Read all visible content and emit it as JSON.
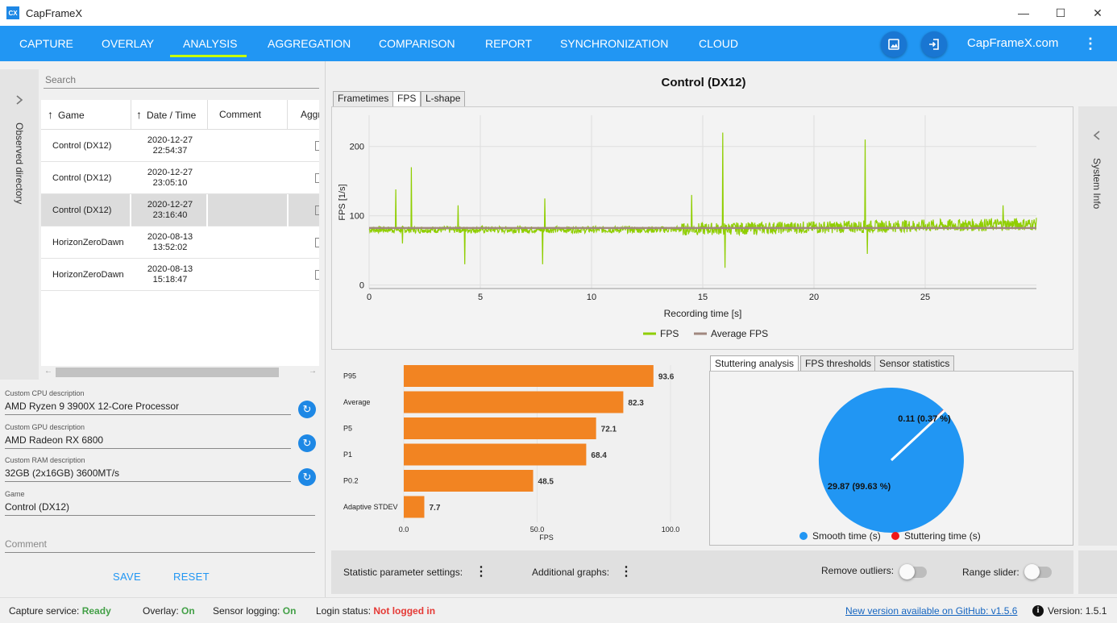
{
  "window": {
    "title": "CapFrameX",
    "logo_text": "CX"
  },
  "nav": {
    "tabs": [
      "CAPTURE",
      "OVERLAY",
      "ANALYSIS",
      "AGGREGATION",
      "COMPARISON",
      "REPORT",
      "SYNCHRONIZATION",
      "CLOUD"
    ],
    "active_tab": "ANALYSIS",
    "site_link": "CapFrameX.com"
  },
  "sidebar_left": {
    "label": "Observed directory"
  },
  "sidebar_right": {
    "label": "System Info"
  },
  "search": {
    "placeholder": "Search"
  },
  "records_table": {
    "columns": [
      "Game",
      "Date / Time",
      "Comment",
      "Aggr"
    ],
    "rows": [
      {
        "game": "Control (DX12)",
        "date": "2020-12-27",
        "time": "22:54:37"
      },
      {
        "game": "Control (DX12)",
        "date": "2020-12-27",
        "time": "23:05:10"
      },
      {
        "game": "Control (DX12)",
        "date": "2020-12-27",
        "time": "23:16:40",
        "selected": true
      },
      {
        "game": "HorizonZeroDawn",
        "date": "2020-08-13",
        "time": "13:52:02"
      },
      {
        "game": "HorizonZeroDawn",
        "date": "2020-08-13",
        "time": "15:18:47"
      }
    ]
  },
  "details": {
    "cpu": {
      "label": "Custom CPU description",
      "value": "AMD Ryzen 9 3900X 12-Core Processor"
    },
    "gpu": {
      "label": "Custom GPU description",
      "value": "AMD Radeon RX 6800"
    },
    "ram": {
      "label": "Custom RAM description",
      "value": "32GB (2x16GB) 3600MT/s"
    },
    "game": {
      "label": "Game",
      "value": "Control (DX12)"
    },
    "comment": {
      "placeholder": "Comment"
    },
    "save_label": "SAVE",
    "reset_label": "RESET"
  },
  "analysis": {
    "title": "Control (DX12)",
    "graph_tabs": [
      "Frametimes",
      "FPS",
      "L-shape"
    ],
    "active_graph_tab": "FPS",
    "stats_tabs": [
      "Stuttering analysis",
      "FPS thresholds",
      "Sensor statistics"
    ],
    "active_stats_tab": "Stuttering analysis"
  },
  "chart_data": [
    {
      "type": "line",
      "xlabel": "Recording time [s]",
      "ylabel": "FPS [1/s]",
      "xlim": [
        0,
        30
      ],
      "ylim": [
        -5,
        245
      ],
      "xticks": [
        0,
        5,
        10,
        15,
        20,
        25
      ],
      "yticks": [
        0,
        100,
        200
      ],
      "grid": true,
      "legend_position": "bottom-center",
      "series": [
        {
          "name": "FPS",
          "color": "#8fce00",
          "baseline": 80,
          "trend_end": 88,
          "spikes": [
            [
              1.2,
              138
            ],
            [
              1.9,
              170
            ],
            [
              1.5,
              60
            ],
            [
              4.0,
              115
            ],
            [
              4.3,
              30
            ],
            [
              7.8,
              30
            ],
            [
              7.9,
              125
            ],
            [
              14.5,
              130
            ],
            [
              15.9,
              220
            ],
            [
              16.0,
              25
            ],
            [
              22.3,
              210
            ],
            [
              22.4,
              45
            ],
            [
              28.5,
              115
            ]
          ]
        },
        {
          "name": "Average FPS",
          "color": "#a1887f",
          "x": [
            0,
            30
          ],
          "y": [
            82.3,
            82.3
          ]
        }
      ]
    },
    {
      "type": "bar",
      "orientation": "horizontal",
      "xlabel": "FPS",
      "xlim": [
        0,
        100
      ],
      "xticks": [
        "0.0",
        "50.0",
        "100.0"
      ],
      "color": "#f28422",
      "categories": [
        "P95",
        "Average",
        "P5",
        "P1",
        "P0.2",
        "Adaptive STDEV"
      ],
      "values": [
        93.6,
        82.3,
        72.1,
        68.4,
        48.5,
        7.7
      ]
    },
    {
      "type": "pie",
      "slices": [
        {
          "name": "Smooth time (s)",
          "value": 29.87,
          "label": "29.87 (99.63 %)",
          "color": "#2196f3"
        },
        {
          "name": "Stuttering time (s)",
          "value": 0.11,
          "label": "0.11 (0.37 %)",
          "color": "#f01818"
        }
      ]
    }
  ],
  "settings_bar": {
    "statistic_label": "Statistic parameter settings:",
    "graphs_label": "Additional graphs:",
    "outliers_label": "Remove outliers:",
    "range_label": "Range slider:"
  },
  "status": {
    "capture_label": "Capture service:",
    "capture_value": "Ready",
    "overlay_label": "Overlay:",
    "overlay_value": "On",
    "sensor_label": "Sensor logging:",
    "sensor_value": "On",
    "login_label": "Login status:",
    "login_value": "Not logged in",
    "update_link": "New version available on GitHub: v1.5.6",
    "version_label": "Version:",
    "version_value": "1.5.1"
  }
}
